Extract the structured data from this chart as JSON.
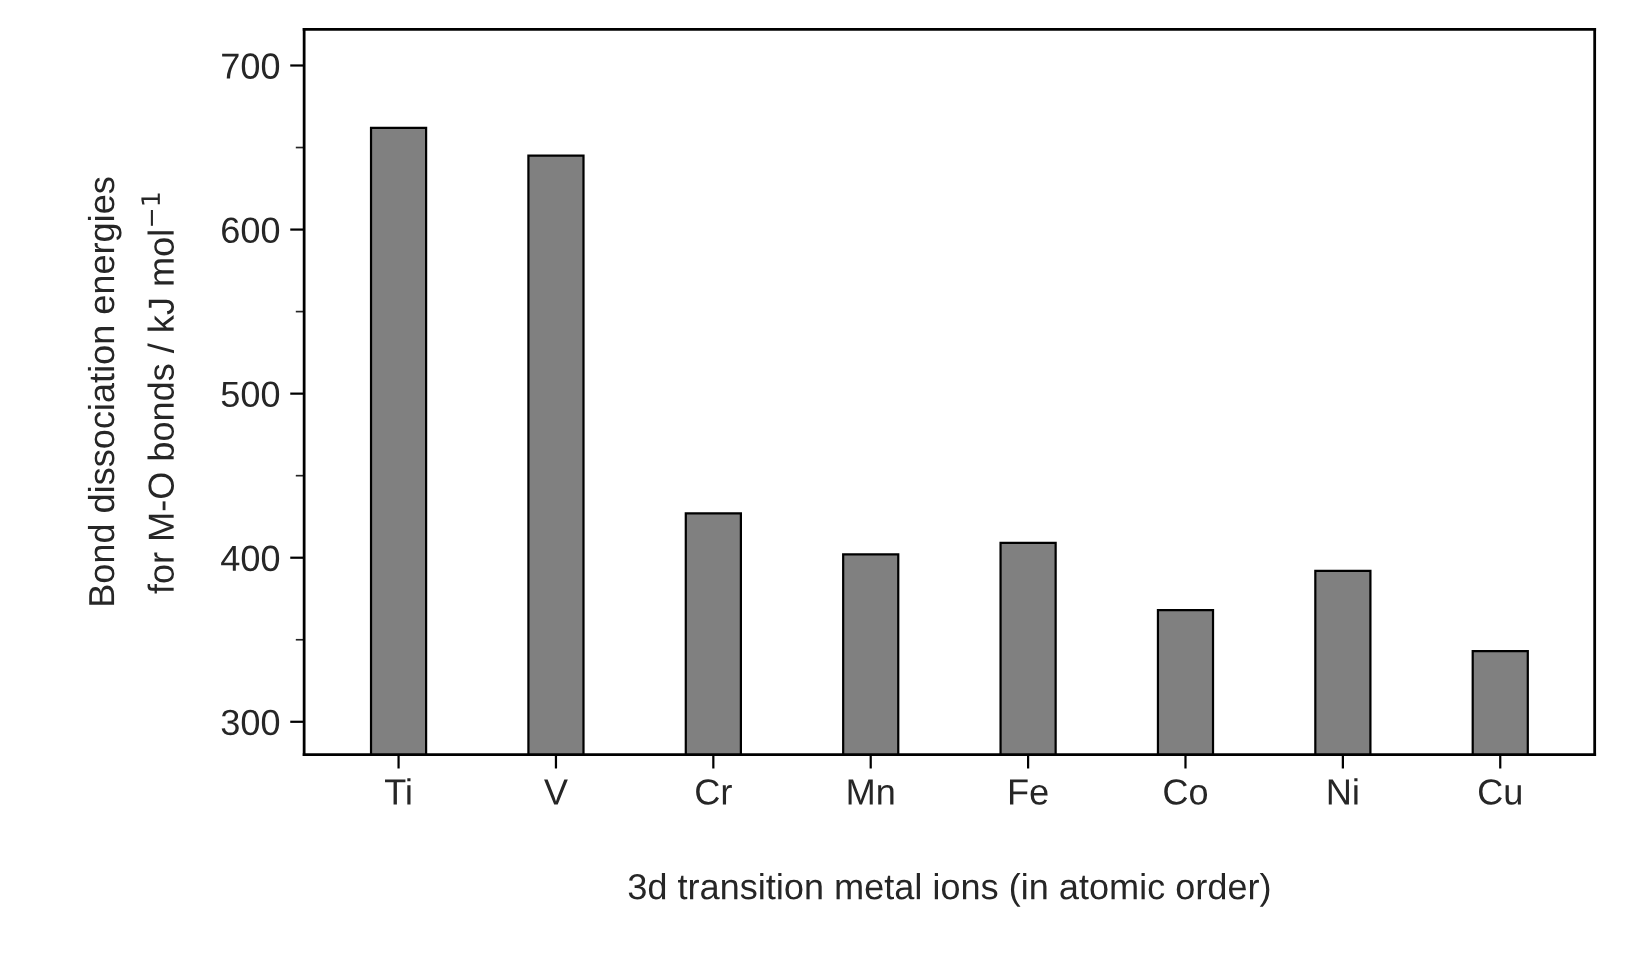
{
  "chart_data": {
    "type": "bar",
    "xlabel": "3d transition metal ions (in atomic order)",
    "ylabel": "Bond dissociation energies\nfor M-O bonds / kJ mol$^{−1}$",
    "categories": [
      "Ti",
      "V",
      "Cr",
      "Mn",
      "Fe",
      "Co",
      "Ni",
      "Cu"
    ],
    "values": [
      662,
      645,
      427,
      402,
      409,
      368,
      392,
      343
    ],
    "color": "#808080",
    "ylim": [
      280,
      722
    ],
    "yticks": [
      300,
      400,
      500,
      600,
      700
    ],
    "grid": false,
    "legend": false
  }
}
